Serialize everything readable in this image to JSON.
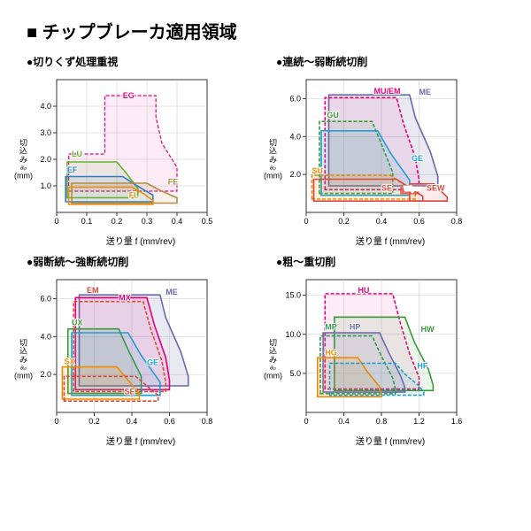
{
  "title": "■ チップブレーカ適用領域",
  "xlabel": "送り量 f (mm/rev)",
  "ylabel_lines": [
    "切",
    "込",
    "み",
    "aₚ",
    "(mm)"
  ],
  "axis_color": "#333333",
  "grid_color": "#c8c8c8",
  "tick_font": 9,
  "panels": [
    {
      "title": "●切りくず処理重視",
      "xlim": [
        0,
        0.5
      ],
      "xticks": [
        0,
        0.1,
        0.2,
        0.3,
        0.4,
        0.5
      ],
      "ylim": [
        0,
        5
      ],
      "yticks": [
        1.0,
        2.0,
        3.0,
        4.0
      ],
      "regions": [
        {
          "label": "EG",
          "lx": 0.22,
          "ly": 4.3,
          "stroke": "#e6007e",
          "sw": 1.2,
          "dash": "4 2",
          "fill": "#e6007e",
          "fo": 0.08,
          "pts": [
            [
              0.04,
              0.8
            ],
            [
              0.04,
              2.2
            ],
            [
              0.16,
              2.2
            ],
            [
              0.16,
              4.4
            ],
            [
              0.33,
              4.4
            ],
            [
              0.33,
              3.6
            ],
            [
              0.35,
              2.6
            ],
            [
              0.4,
              1.7
            ],
            [
              0.4,
              0.8
            ]
          ]
        },
        {
          "label": "LU",
          "lx": 0.05,
          "ly": 2.1,
          "stroke": "#63b32e",
          "sw": 1.6,
          "dash": "",
          "fill": "#63b32e",
          "fo": 0.1,
          "pts": [
            [
              0.035,
              0.55
            ],
            [
              0.035,
              1.9
            ],
            [
              0.2,
              1.9
            ],
            [
              0.23,
              1.5
            ],
            [
              0.27,
              0.9
            ],
            [
              0.27,
              0.55
            ]
          ]
        },
        {
          "label": "EF",
          "lx": 0.035,
          "ly": 1.5,
          "stroke": "#2e7cc7",
          "sw": 1.6,
          "dash": "",
          "fill": "#2e7cc7",
          "fo": 0.1,
          "pts": [
            [
              0.03,
              0.4
            ],
            [
              0.03,
              1.35
            ],
            [
              0.22,
              1.35
            ],
            [
              0.26,
              1.05
            ],
            [
              0.32,
              0.65
            ],
            [
              0.32,
              0.4
            ]
          ]
        },
        {
          "label": "FE",
          "lx": 0.37,
          "ly": 1.05,
          "stroke": "#b28b3e",
          "sw": 1.6,
          "dash": "",
          "fill": "#b28b3e",
          "fo": 0.1,
          "pts": [
            [
              0.05,
              0.35
            ],
            [
              0.05,
              1.1
            ],
            [
              0.3,
              1.1
            ],
            [
              0.34,
              0.85
            ],
            [
              0.4,
              0.55
            ],
            [
              0.4,
              0.35
            ]
          ]
        },
        {
          "label": "FL",
          "lx": 0.24,
          "ly": 0.55,
          "stroke": "#f18a00",
          "sw": 1.6,
          "dash": "",
          "fill": "none",
          "fo": 0,
          "pts": [
            [
              0.04,
              0.3
            ],
            [
              0.04,
              0.95
            ],
            [
              0.25,
              0.95
            ],
            [
              0.29,
              0.7
            ],
            [
              0.32,
              0.45
            ],
            [
              0.32,
              0.3
            ]
          ]
        }
      ]
    },
    {
      "title": "●連続～弱断続切削",
      "xlim": [
        0,
        0.8
      ],
      "xticks": [
        0,
        0.2,
        0.4,
        0.6,
        0.8
      ],
      "ylim": [
        0,
        7
      ],
      "yticks": [
        2.0,
        4.0,
        6.0
      ],
      "regions": [
        {
          "label": "ME",
          "lx": 0.6,
          "ly": 6.2,
          "stroke": "#6a6aa8",
          "sw": 1.6,
          "dash": "",
          "fill": "#6a6aa8",
          "fo": 0.15,
          "pts": [
            [
              0.12,
              1.4
            ],
            [
              0.12,
              6.2
            ],
            [
              0.55,
              6.2
            ],
            [
              0.58,
              5.0
            ],
            [
              0.66,
              3.2
            ],
            [
              0.7,
              1.9
            ],
            [
              0.7,
              1.4
            ]
          ]
        },
        {
          "label": "MU/EM",
          "lx": 0.36,
          "ly": 6.25,
          "stroke": "#e6007e",
          "sw": 1.6,
          "dash": "4 2",
          "fill": "#e6007e",
          "fo": 0.08,
          "pts": [
            [
              0.1,
              1.2
            ],
            [
              0.1,
              6.05
            ],
            [
              0.48,
              6.05
            ],
            [
              0.52,
              4.6
            ],
            [
              0.58,
              2.9
            ],
            [
              0.6,
              1.7
            ],
            [
              0.6,
              1.2
            ]
          ]
        },
        {
          "label": "GU",
          "lx": 0.11,
          "ly": 5.0,
          "stroke": "#3a9a3a",
          "sw": 1.6,
          "dash": "4 2",
          "fill": "#3a9a3a",
          "fo": 0.08,
          "pts": [
            [
              0.07,
              1.0
            ],
            [
              0.07,
              4.8
            ],
            [
              0.35,
              4.8
            ],
            [
              0.4,
              3.6
            ],
            [
              0.46,
              2.1
            ],
            [
              0.46,
              1.0
            ]
          ]
        },
        {
          "label": "GE",
          "lx": 0.56,
          "ly": 2.7,
          "stroke": "#1f9ecf",
          "sw": 1.6,
          "dash": "",
          "fill": "#1f9ecf",
          "fo": 0.1,
          "pts": [
            [
              0.08,
              0.9
            ],
            [
              0.08,
              4.3
            ],
            [
              0.38,
              4.3
            ],
            [
              0.45,
              3.1
            ],
            [
              0.55,
              1.7
            ],
            [
              0.55,
              0.9
            ]
          ]
        },
        {
          "label": "SU",
          "lx": 0.03,
          "ly": 2.05,
          "stroke": "#f18a00",
          "sw": 1.6,
          "dash": "4 2",
          "fill": "#f18a00",
          "fo": 0.12,
          "pts": [
            [
              0.03,
              0.7
            ],
            [
              0.03,
              1.95
            ],
            [
              0.45,
              1.95
            ],
            [
              0.52,
              1.45
            ],
            [
              0.58,
              1.0
            ],
            [
              0.58,
              0.7
            ]
          ]
        },
        {
          "label": "SE",
          "lx": 0.4,
          "ly": 1.15,
          "stroke": "#d9483b",
          "sw": 1.6,
          "dash": "",
          "fill": "none",
          "fo": 0,
          "pts": [
            [
              0.04,
              0.6
            ],
            [
              0.04,
              1.75
            ],
            [
              0.48,
              1.75
            ],
            [
              0.55,
              1.3
            ],
            [
              0.62,
              0.85
            ],
            [
              0.62,
              0.6
            ]
          ]
        },
        {
          "label": "SEW",
          "lx": 0.64,
          "ly": 1.15,
          "stroke": "#d9483b",
          "sw": 1.6,
          "dash": "",
          "fill": "#d9483b",
          "fo": 0.1,
          "pts": [
            [
              0.55,
              0.6
            ],
            [
              0.55,
              1.5
            ],
            [
              0.68,
              1.5
            ],
            [
              0.72,
              1.1
            ],
            [
              0.75,
              0.8
            ],
            [
              0.75,
              0.6
            ]
          ]
        },
        {
          "label": "Wiper",
          "lx": 0.52,
          "ly": 1.15,
          "stroke": "#ffffff",
          "sw": 0,
          "dash": "",
          "fill": "#d9483b",
          "fo": 0.75,
          "pts": [
            [
              0.5,
              0.95
            ],
            [
              0.5,
              1.35
            ],
            [
              0.6,
              1.35
            ],
            [
              0.6,
              0.95
            ]
          ],
          "labelfill": "#ffffff",
          "small": true
        }
      ]
    },
    {
      "title": "●弱断続～強断続切削",
      "xlim": [
        0,
        0.8
      ],
      "xticks": [
        0,
        0.2,
        0.4,
        0.6,
        0.8
      ],
      "ylim": [
        0,
        7
      ],
      "yticks": [
        2.0,
        4.0,
        6.0
      ],
      "regions": [
        {
          "label": "ME",
          "lx": 0.58,
          "ly": 6.2,
          "stroke": "#6a6aa8",
          "sw": 1.6,
          "dash": "",
          "fill": "#6a6aa8",
          "fo": 0.15,
          "pts": [
            [
              0.12,
              1.4
            ],
            [
              0.12,
              6.2
            ],
            [
              0.55,
              6.2
            ],
            [
              0.58,
              5.0
            ],
            [
              0.66,
              3.2
            ],
            [
              0.7,
              1.9
            ],
            [
              0.7,
              1.4
            ]
          ]
        },
        {
          "label": "MX",
          "lx": 0.33,
          "ly": 5.9,
          "stroke": "#e6007e",
          "sw": 1.6,
          "dash": "",
          "fill": "#e6007e",
          "fo": 0.1,
          "pts": [
            [
              0.1,
              1.2
            ],
            [
              0.1,
              6.05
            ],
            [
              0.48,
              6.05
            ],
            [
              0.52,
              4.6
            ],
            [
              0.58,
              2.9
            ],
            [
              0.6,
              1.7
            ],
            [
              0.6,
              1.2
            ]
          ]
        },
        {
          "label": "EM",
          "lx": 0.16,
          "ly": 6.3,
          "stroke": "#d9483b",
          "sw": 1.6,
          "dash": "4 2",
          "fill": "none",
          "fo": 0,
          "pts": [
            [
              0.09,
              1.1
            ],
            [
              0.09,
              5.85
            ],
            [
              0.46,
              5.85
            ],
            [
              0.5,
              4.4
            ],
            [
              0.56,
              2.7
            ],
            [
              0.58,
              1.6
            ],
            [
              0.58,
              1.1
            ]
          ]
        },
        {
          "label": "UX",
          "lx": 0.08,
          "ly": 4.6,
          "stroke": "#3a9a3a",
          "sw": 1.6,
          "dash": "",
          "fill": "#3a9a3a",
          "fo": 0.1,
          "pts": [
            [
              0.06,
              1.0
            ],
            [
              0.06,
              4.4
            ],
            [
              0.33,
              4.4
            ],
            [
              0.38,
              3.3
            ],
            [
              0.45,
              1.9
            ],
            [
              0.45,
              1.0
            ]
          ]
        },
        {
          "label": "GE",
          "lx": 0.48,
          "ly": 2.5,
          "stroke": "#1f9ecf",
          "sw": 1.6,
          "dash": "",
          "fill": "#1f9ecf",
          "fo": 0.1,
          "pts": [
            [
              0.08,
              0.9
            ],
            [
              0.08,
              4.2
            ],
            [
              0.38,
              4.2
            ],
            [
              0.45,
              3.0
            ],
            [
              0.55,
              1.6
            ],
            [
              0.55,
              0.9
            ]
          ]
        },
        {
          "label": "SX",
          "lx": 0.04,
          "ly": 2.55,
          "stroke": "#f18a00",
          "sw": 1.6,
          "dash": "",
          "fill": "#f18a00",
          "fo": 0.12,
          "pts": [
            [
              0.03,
              0.7
            ],
            [
              0.03,
              2.4
            ],
            [
              0.32,
              2.4
            ],
            [
              0.38,
              1.7
            ],
            [
              0.44,
              1.0
            ],
            [
              0.44,
              0.7
            ]
          ]
        },
        {
          "label": "SE",
          "lx": 0.36,
          "ly": 0.95,
          "stroke": "#d9483b",
          "sw": 1.6,
          "dash": "4 2",
          "fill": "none",
          "fo": 0,
          "pts": [
            [
              0.04,
              0.6
            ],
            [
              0.04,
              1.9
            ],
            [
              0.42,
              1.9
            ],
            [
              0.48,
              1.4
            ],
            [
              0.54,
              0.9
            ],
            [
              0.54,
              0.6
            ]
          ]
        }
      ]
    },
    {
      "title": "●粗～重切削",
      "xlim": [
        0,
        1.6
      ],
      "xticks": [
        0,
        0.4,
        0.8,
        1.2,
        1.6
      ],
      "ylim": [
        0,
        17
      ],
      "yticks": [
        5.0,
        10.0,
        15.0
      ],
      "regions": [
        {
          "label": "HU",
          "lx": 0.55,
          "ly": 15.3,
          "stroke": "#e6007e",
          "sw": 1.6,
          "dash": "4 2",
          "fill": "#e6007e",
          "fo": 0.08,
          "pts": [
            [
              0.2,
              3.0
            ],
            [
              0.2,
              15.2
            ],
            [
              0.92,
              15.2
            ],
            [
              1.0,
              11.5
            ],
            [
              1.1,
              7.5
            ],
            [
              1.2,
              4.5
            ],
            [
              1.2,
              3.0
            ]
          ]
        },
        {
          "label": "HW",
          "lx": 1.22,
          "ly": 10.3,
          "stroke": "#3a9a3a",
          "sw": 1.6,
          "dash": "",
          "fill": "#3a9a3a",
          "fo": 0.1,
          "pts": [
            [
              0.3,
              2.8
            ],
            [
              0.3,
              12.2
            ],
            [
              1.05,
              12.2
            ],
            [
              1.15,
              9.0
            ],
            [
              1.3,
              5.5
            ],
            [
              1.35,
              3.5
            ],
            [
              1.35,
              2.8
            ]
          ]
        },
        {
          "label": "HP",
          "lx": 0.46,
          "ly": 10.6,
          "stroke": "#6a6aa8",
          "sw": 1.6,
          "dash": "",
          "fill": "#6a6aa8",
          "fo": 0.12,
          "pts": [
            [
              0.18,
              2.6
            ],
            [
              0.18,
              10.2
            ],
            [
              0.78,
              10.2
            ],
            [
              0.88,
              7.6
            ],
            [
              1.0,
              4.8
            ],
            [
              1.05,
              3.2
            ],
            [
              1.05,
              2.6
            ]
          ]
        },
        {
          "label": "MP",
          "lx": 0.2,
          "ly": 10.6,
          "stroke": "#2e9a4a",
          "sw": 1.6,
          "dash": "4 2",
          "fill": "none",
          "fo": 0,
          "pts": [
            [
              0.15,
              2.4
            ],
            [
              0.15,
              9.8
            ],
            [
              0.7,
              9.8
            ],
            [
              0.8,
              7.2
            ],
            [
              0.92,
              4.4
            ],
            [
              0.95,
              2.9
            ],
            [
              0.95,
              2.4
            ]
          ]
        },
        {
          "label": "HG",
          "lx": 0.2,
          "ly": 7.3,
          "stroke": "#f18a00",
          "sw": 1.6,
          "dash": "",
          "fill": "#f18a00",
          "fo": 0.12,
          "pts": [
            [
              0.12,
              2.0
            ],
            [
              0.12,
              7.0
            ],
            [
              0.55,
              7.0
            ],
            [
              0.65,
              5.2
            ],
            [
              0.78,
              3.3
            ],
            [
              0.8,
              2.3
            ],
            [
              0.8,
              2.0
            ]
          ]
        },
        {
          "label": "HF",
          "lx": 1.18,
          "ly": 5.6,
          "stroke": "#1f9ecf",
          "sw": 1.6,
          "dash": "4 2",
          "fill": "#1f9ecf",
          "fo": 0.08,
          "pts": [
            [
              0.25,
              2.2
            ],
            [
              0.25,
              6.3
            ],
            [
              0.95,
              6.3
            ],
            [
              1.05,
              4.9
            ],
            [
              1.2,
              3.4
            ],
            [
              1.25,
              2.6
            ],
            [
              1.25,
              2.2
            ]
          ]
        }
      ]
    }
  ]
}
